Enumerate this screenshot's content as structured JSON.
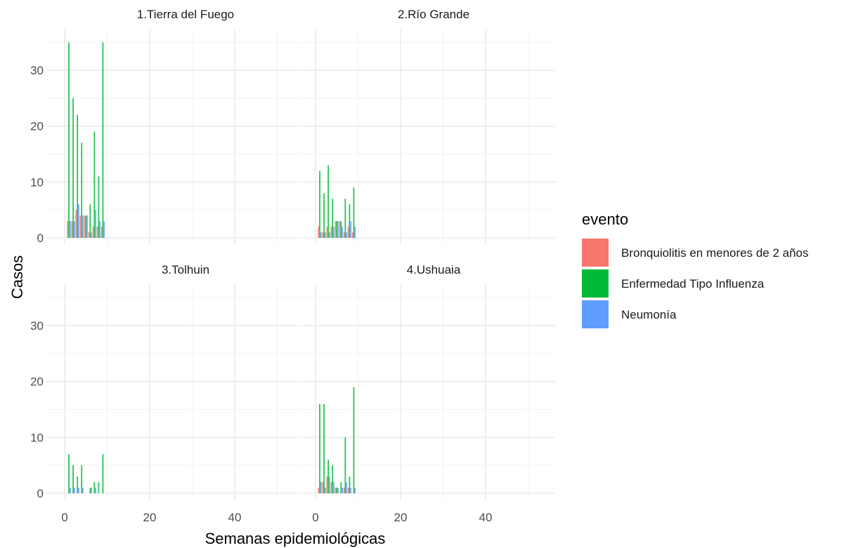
{
  "chart_data": {
    "type": "bar",
    "layout": "facet 2x2",
    "xlabel": "Semanas epidemiológicas",
    "ylabel": "Casos",
    "xlim": [
      0,
      54
    ],
    "ylim": [
      0,
      36
    ],
    "x_ticks": [
      0,
      20,
      40
    ],
    "y_ticks": [
      0,
      10,
      20,
      30
    ],
    "grid": true,
    "legend": {
      "title": "evento",
      "position": "right",
      "entries": [
        {
          "name": "Bronquiolitis en menores de 2 años",
          "color": "#F8766D"
        },
        {
          "name": "Enfermedad Tipo Influenza",
          "color": "#00BA38"
        },
        {
          "name": "Neumonía",
          "color": "#619CFF"
        }
      ]
    },
    "panels": [
      {
        "title": "1.Tierra del Fuego",
        "x": [
          1,
          2,
          3,
          4,
          5,
          6,
          7,
          8,
          9
        ],
        "series": [
          {
            "name": "Bronquiolitis en menores de 2 años",
            "values": [
              3,
              3,
              5,
              4,
              4,
              1,
              2,
              2,
              2
            ]
          },
          {
            "name": "Enfermedad Tipo Influenza",
            "values": [
              35,
              25,
              22,
              17,
              4,
              6,
              19,
              11,
              35
            ]
          },
          {
            "name": "Neumonía",
            "values": [
              3,
              3,
              6,
              4,
              4,
              1,
              5,
              3,
              3
            ]
          }
        ]
      },
      {
        "title": "2.Río Grande",
        "x": [
          1,
          2,
          3,
          4,
          5,
          6,
          7,
          8,
          9
        ],
        "series": [
          {
            "name": "Bronquiolitis en menores de 2 años",
            "values": [
              2,
              1,
              2,
              2,
              3,
              3,
              1,
              2,
              1
            ]
          },
          {
            "name": "Enfermedad Tipo Influenza",
            "values": [
              12,
              8,
              13,
              7,
              3,
              3,
              7,
              6,
              9
            ]
          },
          {
            "name": "Neumonía",
            "values": [
              1,
              1,
              1,
              2,
              3,
              2,
              1,
              3,
              2
            ]
          }
        ]
      },
      {
        "title": "3.Tolhuin",
        "x": [
          1,
          2,
          3,
          4,
          5,
          6,
          7,
          8,
          9
        ],
        "series": [
          {
            "name": "Bronquiolitis en menores de 2 años",
            "values": [
              0,
              0,
              0,
              0,
              0,
              0,
              0,
              0,
              0
            ]
          },
          {
            "name": "Enfermedad Tipo Influenza",
            "values": [
              7,
              5,
              3,
              5,
              0,
              1,
              2,
              2,
              7
            ]
          },
          {
            "name": "Neumonía",
            "values": [
              1,
              1,
              1,
              1,
              0,
              1,
              1,
              0,
              0
            ]
          }
        ]
      },
      {
        "title": "4.Ushuaia",
        "x": [
          1,
          2,
          3,
          4,
          5,
          6,
          7,
          8,
          9
        ],
        "series": [
          {
            "name": "Bronquiolitis en menores de 2 años",
            "values": [
              1,
              2,
              3,
              2,
              1,
              0,
              1,
              1,
              0
            ]
          },
          {
            "name": "Enfermedad Tipo Influenza",
            "values": [
              16,
              16,
              6,
              5,
              1,
              2,
              10,
              3,
              19
            ]
          },
          {
            "name": "Neumonía",
            "values": [
              2,
              1,
              3,
              2,
              1,
              1,
              2,
              1,
              1
            ]
          }
        ]
      }
    ]
  }
}
